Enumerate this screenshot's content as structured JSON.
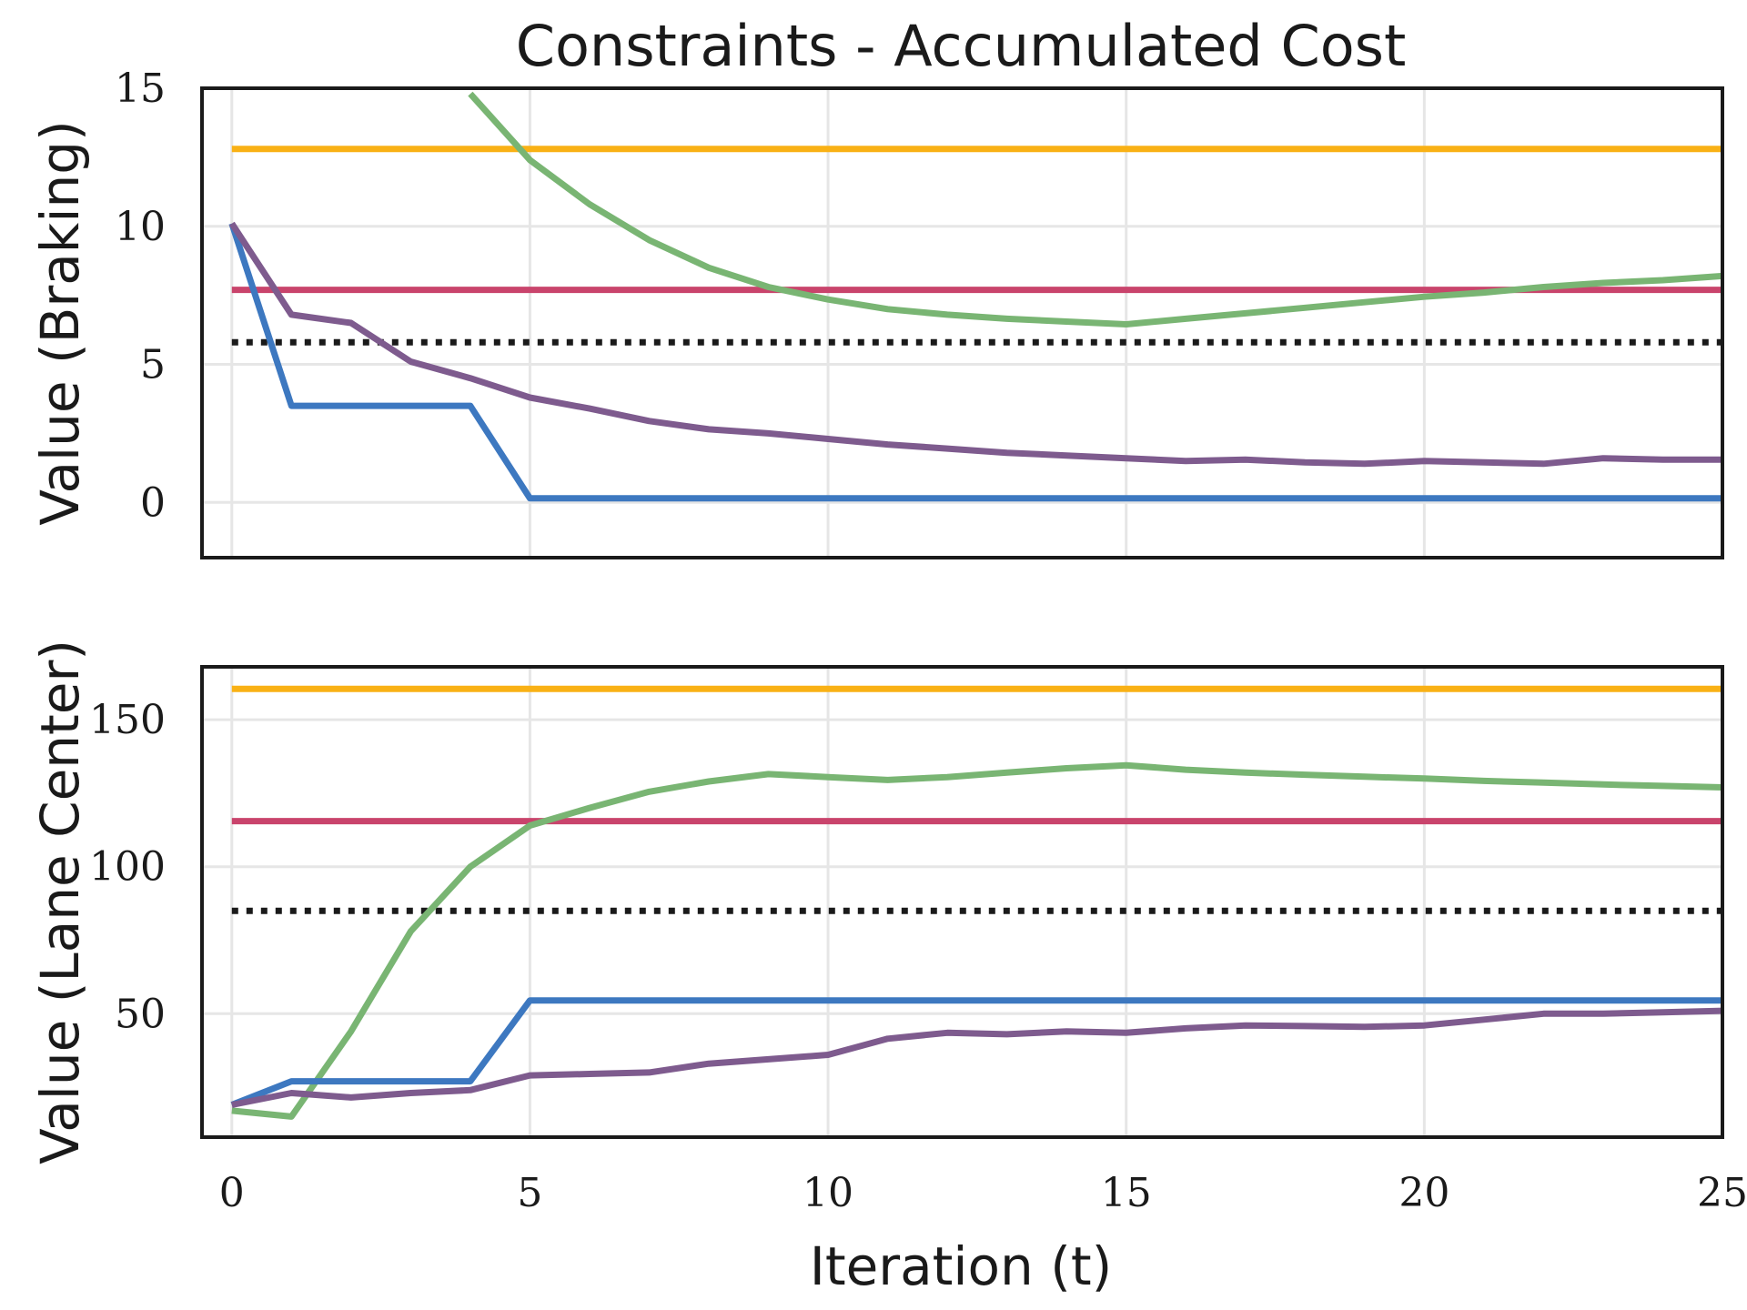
{
  "chart_data": {
    "type": "line",
    "title": "Constraints - Accumulated Cost",
    "xlabel": "Iteration (t)",
    "xlim": [
      -0.5,
      25
    ],
    "xticks": [
      0,
      5,
      10,
      15,
      20,
      25
    ],
    "grid": true,
    "legend": "none",
    "panels": [
      {
        "ylabel": "Value (Braking)",
        "ylim": [
          -2,
          15
        ],
        "yticks": [
          0,
          5,
          10,
          15
        ],
        "series": [
          {
            "color": "#f9b115",
            "style": "solid",
            "x": [
              0,
              25
            ],
            "y": [
              12.8,
              12.8
            ]
          },
          {
            "color": "#c9446c",
            "style": "solid",
            "x": [
              0,
              25
            ],
            "y": [
              7.7,
              7.7
            ]
          },
          {
            "color": "#1a1a1a",
            "style": "dotted",
            "x": [
              0,
              25
            ],
            "y": [
              5.8,
              5.8
            ]
          },
          {
            "color": "#79b573",
            "style": "solid",
            "x": [
              4,
              5,
              6,
              7,
              8,
              9,
              10,
              11,
              12,
              13,
              14,
              15,
              16,
              17,
              18,
              19,
              20,
              21,
              22,
              23,
              24,
              25
            ],
            "y": [
              14.8,
              12.4,
              10.8,
              9.5,
              8.5,
              7.8,
              7.35,
              7.0,
              6.8,
              6.65,
              6.55,
              6.45,
              6.65,
              6.85,
              7.05,
              7.25,
              7.45,
              7.6,
              7.8,
              7.95,
              8.05,
              8.2
            ]
          },
          {
            "color": "#3d78c0",
            "style": "solid",
            "x": [
              0,
              1,
              2,
              3,
              4,
              5,
              6,
              7,
              8,
              9,
              10,
              11,
              12,
              13,
              14,
              15,
              16,
              17,
              18,
              19,
              20,
              21,
              22,
              23,
              24,
              25
            ],
            "y": [
              10.1,
              3.5,
              3.5,
              3.5,
              3.5,
              0.15,
              0.15,
              0.15,
              0.15,
              0.15,
              0.15,
              0.15,
              0.15,
              0.15,
              0.15,
              0.15,
              0.15,
              0.15,
              0.15,
              0.15,
              0.15,
              0.15,
              0.15,
              0.15,
              0.15,
              0.15
            ]
          },
          {
            "color": "#7e5b8e",
            "style": "solid",
            "x": [
              0,
              1,
              2,
              3,
              4,
              5,
              6,
              7,
              8,
              9,
              10,
              11,
              12,
              13,
              14,
              15,
              16,
              17,
              18,
              19,
              20,
              21,
              22,
              23,
              24,
              25
            ],
            "y": [
              10.1,
              6.8,
              6.5,
              5.1,
              4.5,
              3.8,
              3.4,
              2.95,
              2.65,
              2.5,
              2.3,
              2.1,
              1.95,
              1.8,
              1.7,
              1.6,
              1.5,
              1.55,
              1.45,
              1.4,
              1.5,
              1.45,
              1.4,
              1.6,
              1.55,
              1.55
            ]
          }
        ]
      },
      {
        "ylabel": "Value (Lane Center)",
        "ylim": [
          8,
          168
        ],
        "yticks": [
          50,
          100,
          150
        ],
        "series": [
          {
            "color": "#f9b115",
            "style": "solid",
            "x": [
              0,
              25
            ],
            "y": [
              160.5,
              160.5
            ]
          },
          {
            "color": "#c9446c",
            "style": "solid",
            "x": [
              0,
              25
            ],
            "y": [
              115.5,
              115.5
            ]
          },
          {
            "color": "#1a1a1a",
            "style": "dotted",
            "x": [
              0,
              25
            ],
            "y": [
              85,
              85
            ]
          },
          {
            "color": "#79b573",
            "style": "solid",
            "x": [
              0,
              1,
              2,
              3,
              4,
              5,
              6,
              7,
              8,
              9,
              10,
              11,
              12,
              13,
              14,
              15,
              16,
              17,
              18,
              19,
              20,
              21,
              22,
              23,
              24,
              25
            ],
            "y": [
              17,
              15,
              44,
              78,
              100,
              114,
              120,
              125.5,
              129,
              131.5,
              130.5,
              129.5,
              130.5,
              132,
              133.5,
              134.5,
              133,
              132,
              131.3,
              130.6,
              130,
              129.2,
              128.6,
              128,
              127.5,
              127
            ]
          },
          {
            "color": "#3d78c0",
            "style": "solid",
            "x": [
              0,
              1,
              2,
              3,
              4,
              5,
              6,
              7,
              8,
              9,
              10,
              11,
              12,
              13,
              14,
              15,
              16,
              17,
              18,
              19,
              20,
              21,
              22,
              23,
              24,
              25
            ],
            "y": [
              19,
              27,
              27,
              27,
              27,
              54.5,
              54.5,
              54.5,
              54.5,
              54.5,
              54.5,
              54.5,
              54.5,
              54.5,
              54.5,
              54.5,
              54.5,
              54.5,
              54.5,
              54.5,
              54.5,
              54.5,
              54.5,
              54.5,
              54.5,
              54.5
            ]
          },
          {
            "color": "#7e5b8e",
            "style": "solid",
            "x": [
              0,
              1,
              2,
              3,
              4,
              5,
              6,
              7,
              8,
              9,
              10,
              11,
              12,
              13,
              14,
              15,
              16,
              17,
              18,
              19,
              20,
              21,
              22,
              23,
              24,
              25
            ],
            "y": [
              19,
              23,
              21.5,
              23,
              24,
              29,
              29.5,
              30,
              33,
              34.5,
              36,
              41.5,
              43.5,
              43,
              44,
              43.5,
              45,
              46,
              45.8,
              45.5,
              46,
              48,
              50,
              50,
              50.5,
              51
            ]
          }
        ]
      }
    ]
  }
}
